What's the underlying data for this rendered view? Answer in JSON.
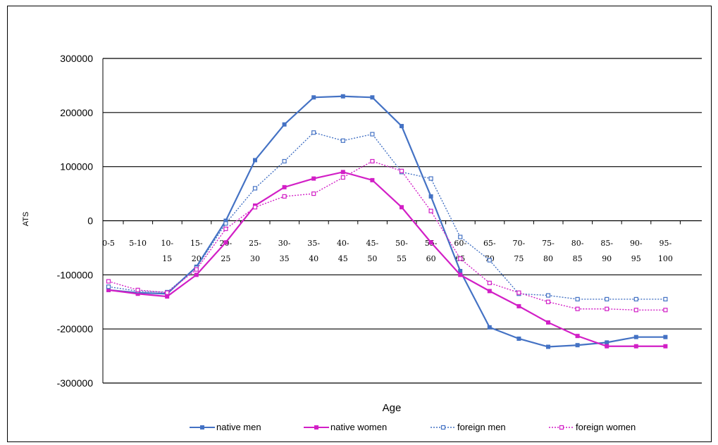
{
  "chart_data": {
    "type": "line",
    "title": "",
    "xlabel": "Age",
    "ylabel": "ATS",
    "ylim": [
      -300000,
      300000
    ],
    "yticks": [
      300000,
      200000,
      100000,
      0,
      -100000,
      -200000,
      -300000
    ],
    "ytick_labels": [
      "300000",
      "200000",
      "100000",
      "0",
      "-100000",
      "-200000",
      "-300000"
    ],
    "grid": "horizontal major gridlines",
    "legend_position": "bottom",
    "categories": [
      [
        "0-5",
        ""
      ],
      [
        "5-10",
        ""
      ],
      [
        "10-",
        "15"
      ],
      [
        "15-",
        "20"
      ],
      [
        "20-",
        "25"
      ],
      [
        "25-",
        "30"
      ],
      [
        "30-",
        "35"
      ],
      [
        "35-",
        "40"
      ],
      [
        "40-",
        "45"
      ],
      [
        "45-",
        "50"
      ],
      [
        "50-",
        "55"
      ],
      [
        "55-",
        "60"
      ],
      [
        "60-",
        "65"
      ],
      [
        "65-",
        "70"
      ],
      [
        "70-",
        "75"
      ],
      [
        "75-",
        "80"
      ],
      [
        "80-",
        "85"
      ],
      [
        "85-",
        "90"
      ],
      [
        "90-",
        "95"
      ],
      [
        "95-",
        "100"
      ]
    ],
    "series": [
      {
        "name": "native men",
        "color": "#4472c4",
        "style": "solid",
        "marker": "filled-square",
        "values": [
          -128000,
          -133000,
          -135000,
          -85000,
          0,
          112000,
          178000,
          228000,
          230000,
          228000,
          175000,
          45000,
          -93000,
          -197000,
          -218000,
          -233000,
          -230000,
          -225000,
          -215000,
          -215000
        ]
      },
      {
        "name": "native women",
        "color": "#d21fc6",
        "style": "solid",
        "marker": "filled-square",
        "values": [
          -128000,
          -135000,
          -140000,
          -100000,
          -40000,
          28000,
          62000,
          78000,
          90000,
          75000,
          25000,
          -40000,
          -100000,
          -130000,
          -158000,
          -188000,
          -213000,
          -232000,
          -232000,
          -232000
        ]
      },
      {
        "name": "foreign men",
        "color": "#4472c4",
        "style": "dotted",
        "marker": "open-square",
        "values": [
          -122000,
          -130000,
          -132000,
          -87000,
          -5000,
          60000,
          110000,
          163000,
          148000,
          160000,
          90000,
          78000,
          -30000,
          -73000,
          -135000,
          -138000,
          -145000,
          -145000,
          -145000,
          -145000
        ]
      },
      {
        "name": "foreign women",
        "color": "#d21fc6",
        "style": "dotted",
        "marker": "open-square",
        "values": [
          -112000,
          -128000,
          -133000,
          -90000,
          -15000,
          25000,
          45000,
          50000,
          80000,
          110000,
          92000,
          18000,
          -70000,
          -115000,
          -133000,
          -150000,
          -163000,
          -163000,
          -165000,
          -165000
        ]
      }
    ]
  }
}
